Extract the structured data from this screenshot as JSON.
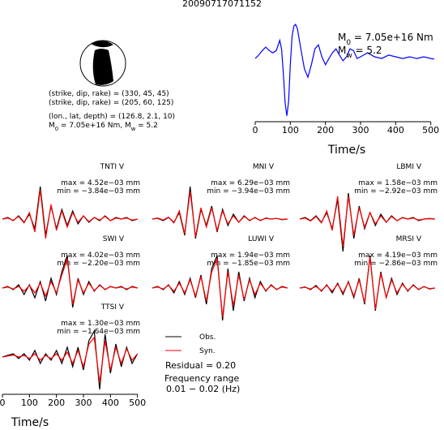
{
  "title": "20090717071152",
  "mechanism": {
    "lines": [
      "(strike, dip, rake) = (330, 45, 45)",
      "(strike, dip, rake) = (205, 60, 125)",
      "(lon., lat, depth) = (126.8, 2.1, 10)"
    ],
    "moment": [
      {
        "text": "M"
      },
      {
        "sub": "0"
      },
      {
        "text": " = 7.05e+16 Nm, M"
      },
      {
        "sub": "w"
      },
      {
        "text": " = 5.2"
      }
    ]
  },
  "chart_data": [
    {
      "type": "line",
      "x": [
        0,
        10,
        20,
        30,
        40,
        50,
        60,
        70,
        75,
        80,
        85,
        90,
        95,
        100,
        105,
        110,
        115,
        120,
        130,
        140,
        150,
        160,
        170,
        180,
        190,
        200,
        210,
        220,
        230,
        240,
        250,
        260,
        270,
        280,
        290,
        300,
        320,
        340,
        360,
        380,
        400,
        420,
        440,
        460,
        480,
        500,
        510
      ],
      "series": [
        {
          "color": "#0000ff",
          "values": [
            -0.03,
            0.03,
            0.11,
            0.17,
            0.11,
            0.07,
            0.11,
            0.29,
            0.14,
            -0.29,
            -0.79,
            -1.04,
            -0.79,
            -0.14,
            0.36,
            0.54,
            0.57,
            0.5,
            0.14,
            -0.21,
            -0.36,
            -0.14,
            0.14,
            0.21,
            0,
            -0.14,
            -0.03,
            0.07,
            0.14,
            0.03,
            -0.07,
            0,
            0.14,
            0.11,
            -0.03,
            0,
            0.07,
            0,
            -0.03,
            0.03,
            0,
            -0.03,
            0,
            -0.03,
            0,
            -0.03,
            -0.04
          ]
        }
      ],
      "xlim": [
        0,
        510
      ],
      "xticks": [
        0,
        100,
        200,
        300,
        400,
        500
      ],
      "xlabel": "Time/s",
      "annotations": [
        [
          {
            "text": "M"
          },
          {
            "sub": "0"
          },
          {
            "text": " = 7.05e+16 Nm"
          }
        ],
        [
          {
            "text": "M"
          },
          {
            "sub": "w"
          },
          {
            "text": " = 5.2"
          }
        ]
      ]
    },
    {
      "type": "waveforms",
      "x": [
        0,
        20,
        40,
        60,
        80,
        100,
        120,
        140,
        160,
        180,
        200,
        220,
        240,
        260,
        280,
        300,
        320,
        340,
        360,
        380,
        400,
        420,
        440,
        460,
        480,
        500
      ],
      "xlim": [
        0,
        510
      ],
      "xticks": [
        0,
        100,
        200,
        300,
        400,
        500
      ],
      "xlabel": "Time/s",
      "panels": [
        {
          "title": "TNTI V",
          "max": "max = 4.52e−03 mm",
          "min": "min = −3.84e−03 mm",
          "series": [
            {
              "name": "Obs.",
              "color": "#000000",
              "values": [
                0,
                0.05,
                -0.05,
                0.1,
                -0.1,
                0.15,
                -0.3,
                1.0,
                -0.5,
                0.4,
                -0.3,
                0.3,
                -0.2,
                0.25,
                -0.15,
                0.1,
                -0.1,
                0.05,
                -0.05,
                0.1,
                -0.05,
                0.05,
                0,
                0.05,
                -0.05,
                0
              ]
            },
            {
              "name": "Syn.",
              "color": "#ff0000",
              "values": [
                0,
                0.03,
                -0.04,
                0.08,
                -0.12,
                0.2,
                -0.4,
                0.9,
                -0.6,
                0.45,
                -0.35,
                0.25,
                -0.25,
                0.2,
                -0.1,
                0.1,
                -0.08,
                0.05,
                -0.03,
                0.08,
                -0.05,
                0.03,
                0,
                0.03,
                -0.03,
                0
              ]
            }
          ]
        },
        {
          "title": "MNI V",
          "max": "max = 6.29e−03 mm",
          "min": "min = −3.94e−03 mm",
          "series": [
            {
              "name": "Obs.",
              "color": "#000000",
              "values": [
                0,
                0.02,
                -0.05,
                0.05,
                -0.1,
                0.2,
                -0.5,
                1.0,
                -0.6,
                0.3,
                -0.2,
                0.4,
                -0.4,
                0.3,
                -0.2,
                0.15,
                -0.1,
                0.1,
                -0.05,
                0.05,
                -0.05,
                0.03,
                0,
                0.02,
                -0.02,
                0
              ]
            },
            {
              "name": "Syn.",
              "color": "#ff0000",
              "values": [
                0,
                0.03,
                -0.03,
                0.06,
                -0.12,
                0.25,
                -0.45,
                0.85,
                -0.55,
                0.35,
                -0.25,
                0.35,
                -0.35,
                0.25,
                -0.15,
                0.1,
                -0.1,
                0.08,
                -0.04,
                0.04,
                -0.04,
                0.02,
                0,
                0.02,
                -0.01,
                0
              ]
            }
          ]
        },
        {
          "title": "LBMI V",
          "max": "max = 1.58e−03 mm",
          "min": "min = −2.92e−03 mm",
          "series": [
            {
              "name": "Obs.",
              "color": "#000000",
              "values": [
                0,
                0.05,
                -0.05,
                0.1,
                -0.1,
                0.2,
                -0.3,
                0.6,
                -1.0,
                0.8,
                -0.6,
                0.4,
                -0.3,
                0.2,
                -0.2,
                0.15,
                -0.1,
                0.1,
                -0.05,
                0.05,
                0,
                0.05,
                -0.05,
                0,
                0.02,
                0
              ]
            },
            {
              "name": "Syn.",
              "color": "#ff0000",
              "values": [
                0,
                0.03,
                -0.06,
                0.08,
                -0.12,
                0.25,
                -0.35,
                0.7,
                -0.85,
                0.7,
                -0.5,
                0.35,
                -0.25,
                0.2,
                -0.15,
                0.1,
                -0.1,
                0.08,
                -0.05,
                0.04,
                0,
                0.03,
                -0.03,
                0,
                0.01,
                0
              ]
            }
          ]
        },
        {
          "title": "SWI V",
          "max": "max = 4.02e−03 mm",
          "min": "min = −2.20e−03 mm",
          "series": [
            {
              "name": "Obs.",
              "color": "#000000",
              "values": [
                0,
                0.05,
                -0.05,
                0.1,
                -0.2,
                0.1,
                -0.3,
                0.2,
                -0.4,
                0.3,
                -0.2,
                0.5,
                1.0,
                -0.6,
                0.3,
                -0.2,
                0.2,
                -0.1,
                0.1,
                -0.05,
                0.05,
                0,
                0.05,
                -0.05,
                0.05,
                0
              ]
            },
            {
              "name": "Syn.",
              "color": "#ff0000",
              "values": [
                0,
                0.03,
                -0.03,
                0.05,
                -0.1,
                0.08,
                -0.15,
                0.15,
                -0.25,
                0.2,
                -0.15,
                0.4,
                0.9,
                -0.5,
                0.25,
                -0.15,
                0.15,
                -0.08,
                0.08,
                -0.04,
                0.04,
                0,
                0.03,
                -0.03,
                0.03,
                0
              ]
            }
          ]
        },
        {
          "title": "LUWI V",
          "max": "max = 1.94e−03 mm",
          "min": "min = −1.85e−03 mm",
          "series": [
            {
              "name": "Obs.",
              "color": "#000000",
              "values": [
                0,
                0.05,
                -0.05,
                0.1,
                -0.15,
                0.2,
                -0.2,
                0.3,
                -0.3,
                0.4,
                -0.5,
                0.6,
                1.0,
                -1.0,
                0.6,
                -0.7,
                0.5,
                -0.4,
                0.3,
                -0.3,
                0.2,
                -0.1,
                0.1,
                -0.05,
                0.05,
                0
              ]
            },
            {
              "name": "Syn.",
              "color": "#ff0000",
              "values": [
                0,
                0.03,
                -0.03,
                0.08,
                -0.1,
                0.15,
                -0.15,
                0.25,
                -0.25,
                0.35,
                -0.4,
                0.5,
                0.9,
                -0.9,
                0.5,
                -0.55,
                0.4,
                -0.35,
                0.25,
                -0.2,
                0.15,
                -0.08,
                0.08,
                -0.04,
                0.03,
                0
              ]
            }
          ]
        },
        {
          "title": "MRSI V",
          "max": "max = 4.19e−03 mm",
          "min": "min = −2.86e−03 mm",
          "series": [
            {
              "name": "Obs.",
              "color": "#000000",
              "values": [
                0,
                0.03,
                -0.05,
                0.08,
                -0.1,
                0.1,
                -0.15,
                0.15,
                -0.2,
                0.2,
                -0.3,
                0.3,
                -0.5,
                1.0,
                -0.7,
                0.5,
                -0.3,
                0.3,
                -0.2,
                0.15,
                -0.1,
                0.1,
                -0.05,
                0.05,
                -0.03,
                0
              ]
            },
            {
              "name": "Syn.",
              "color": "#ff0000",
              "values": [
                0,
                0.02,
                -0.03,
                0.05,
                -0.08,
                0.08,
                -0.1,
                0.12,
                -0.15,
                0.18,
                -0.25,
                0.25,
                -0.45,
                0.95,
                -0.65,
                0.45,
                -0.3,
                0.25,
                -0.15,
                0.12,
                -0.08,
                0.08,
                -0.04,
                0.04,
                -0.02,
                0
              ]
            }
          ]
        },
        {
          "title": "TTSI V",
          "max": "max = 1.30e−03 mm",
          "min": "min = −1.64e−03 mm",
          "series": [
            {
              "name": "Obs.",
              "color": "#000000",
              "values": [
                0,
                0.05,
                0.1,
                -0.05,
                0.1,
                -0.1,
                0.2,
                -0.2,
                0.1,
                -0.1,
                0.2,
                -0.2,
                0.3,
                -0.3,
                0.3,
                -0.4,
                0.5,
                0.8,
                -1.0,
                0.7,
                -0.5,
                0.4,
                -0.3,
                0.3,
                -0.2,
                0.1
              ]
            },
            {
              "name": "Syn.",
              "color": "#ff0000",
              "values": [
                0,
                0.03,
                0.06,
                0,
                0.05,
                -0.05,
                0.1,
                -0.1,
                0.05,
                -0.05,
                0.1,
                -0.1,
                0.15,
                -0.2,
                0.2,
                -0.3,
                0.4,
                0.6,
                -0.8,
                0.5,
                -0.4,
                0.3,
                -0.2,
                0.25,
                -0.1,
                0.1
              ]
            }
          ]
        }
      ]
    }
  ],
  "residual": "Residual = 0.20",
  "frequency": [
    "Frequency range",
    "0.01 − 0.02 (Hz)"
  ]
}
